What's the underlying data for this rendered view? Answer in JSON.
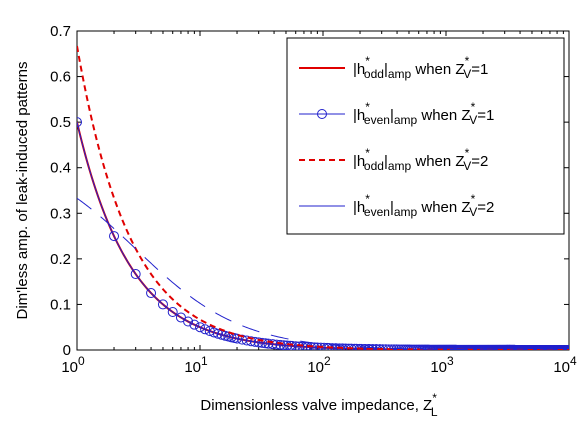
{
  "chart_data": {
    "type": "line",
    "xlabel": "Dimensionless valve impedance, Z",
    "xlabel_sup": "*",
    "xlabel_sub": "L",
    "ylabel": "Dim'less amp. of leak-induced patterns",
    "xscale": "log",
    "xlim": [
      1,
      10000
    ],
    "ylim": [
      0,
      0.7
    ],
    "x_ticks": [
      {
        "value": 1,
        "base": "10",
        "exp": "0"
      },
      {
        "value": 10,
        "base": "10",
        "exp": "1"
      },
      {
        "value": 100,
        "base": "10",
        "exp": "2"
      },
      {
        "value": 1000,
        "base": "10",
        "exp": "3"
      },
      {
        "value": 10000,
        "base": "10",
        "exp": "4"
      }
    ],
    "y_ticks": [
      "0",
      "0.1",
      "0.2",
      "0.3",
      "0.4",
      "0.5",
      "0.6",
      "0.7"
    ],
    "legend_position": "top-right",
    "series": [
      {
        "label_parts": {
          "h": "h",
          "star": "*",
          "sub": "odd",
          "amp": "amp",
          "when": "when Z",
          "vsup": "*",
          "vsub": "V",
          "eq": "=1"
        },
        "color": "#e00000",
        "style": "solid",
        "width": 2,
        "marker": "none",
        "Zv": 1,
        "a": 0.5,
        "k": 1
      },
      {
        "label_parts": {
          "h": "h",
          "star": "*",
          "sub": "even",
          "amp": "amp",
          "when": "when Z",
          "vsup": "*",
          "vsub": "V",
          "eq": "=1"
        },
        "color": "#2222cc",
        "style": "solid",
        "width": 1,
        "marker": "circle",
        "Zv": 1,
        "a": 0.5,
        "k": 1
      },
      {
        "label_parts": {
          "h": "h",
          "star": "*",
          "sub": "odd",
          "amp": "amp",
          "when": "when Z",
          "vsup": "*",
          "vsub": "V",
          "eq": "=2"
        },
        "color": "#e00000",
        "style": "dashed",
        "width": 2,
        "marker": "none",
        "Zv": 2,
        "a": 0.667,
        "k": 2
      },
      {
        "label_parts": {
          "h": "h",
          "star": "*",
          "sub": "even",
          "amp": "amp",
          "when": "when Z",
          "vsup": "*",
          "vsub": "V",
          "eq": "=2"
        },
        "color": "#2222cc",
        "style": "longdash",
        "width": 1,
        "marker": "none",
        "Zv": 2,
        "a": 0.333,
        "k": 0.5
      }
    ]
  }
}
